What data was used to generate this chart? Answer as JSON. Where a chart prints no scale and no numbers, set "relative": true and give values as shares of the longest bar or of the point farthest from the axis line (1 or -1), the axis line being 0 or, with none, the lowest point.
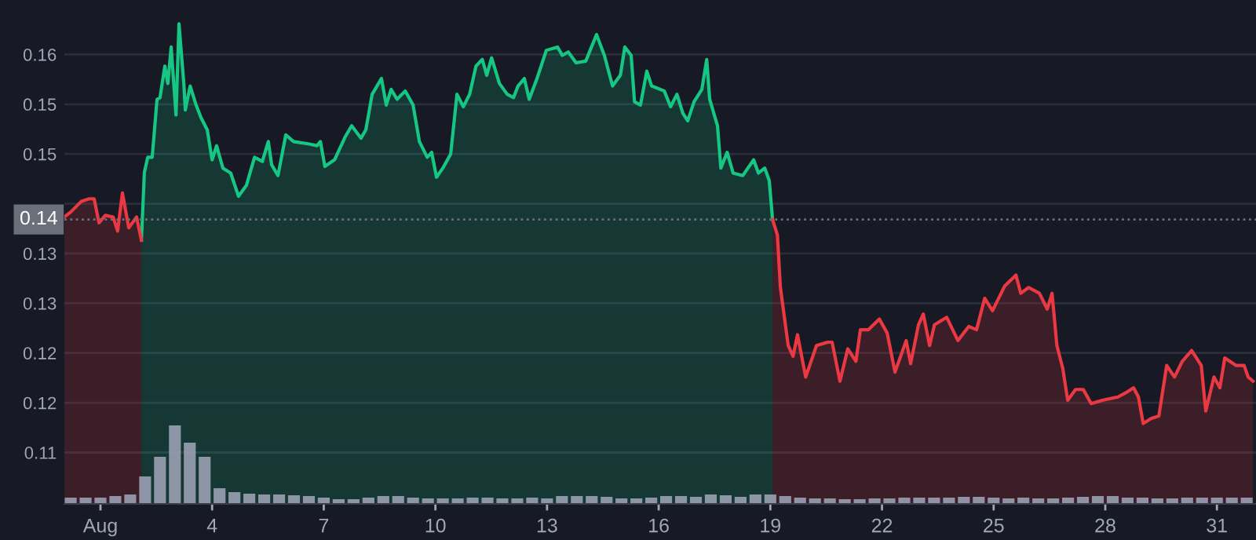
{
  "chart_data": [
    {
      "type": "area",
      "xlim": [
        0.03,
        32.05
      ],
      "ylim": [
        0.1038,
        0.16457
      ],
      "yticks": [
        {
          "value": 0.158,
          "label": "0.16"
        },
        {
          "value": 0.152,
          "label": "0.15"
        },
        {
          "value": 0.146,
          "label": "0.15"
        },
        {
          "value": 0.14,
          "label": null
        },
        {
          "value": 0.134,
          "label": "0.13"
        },
        {
          "value": 0.128,
          "label": "0.13"
        },
        {
          "value": 0.122,
          "label": "0.12"
        },
        {
          "value": 0.116,
          "label": "0.12"
        },
        {
          "value": 0.11,
          "label": "0.11"
        }
      ],
      "grid": "y",
      "tick_labels": "y",
      "ref_lines": [
        {
          "axis": "y",
          "value": 0.1381,
          "label": "0.14",
          "line_style": "dotted",
          "color": "#6b6f7a"
        }
      ],
      "series": [
        {
          "color": "#16c784",
          "x": [
            2.1,
            2.18,
            2.27,
            2.39,
            2.52,
            2.6,
            2.73,
            2.81,
            2.9,
            3.03,
            3.11,
            3.24,
            3.28,
            3.41,
            3.57,
            3.7,
            3.87,
            4.0,
            4.12,
            4.29,
            4.5,
            4.71,
            4.92,
            5.14,
            5.35,
            5.51,
            5.6,
            5.77,
            5.98,
            6.19,
            6.61,
            6.82,
            6.91,
            7.03,
            7.29,
            7.58,
            7.75,
            8.0,
            8.13,
            8.3,
            8.55,
            8.68,
            8.81,
            8.97,
            9.19,
            9.4,
            9.57,
            9.78,
            9.9,
            10.03,
            10.2,
            10.41,
            10.58,
            10.75,
            10.92,
            11.09,
            11.26,
            11.38,
            11.51,
            11.72,
            11.93,
            12.1,
            12.22,
            12.39,
            12.52,
            12.73,
            12.98,
            13.28,
            13.41,
            13.57,
            13.78,
            14.04,
            14.33,
            14.54,
            14.76,
            14.97,
            15.09,
            15.26,
            15.35,
            15.51,
            15.68,
            15.81,
            16.15,
            16.32,
            16.49,
            16.65,
            16.78,
            16.95,
            17.16,
            17.29,
            17.37,
            17.58,
            17.67,
            17.84,
            18.0,
            18.26,
            18.55,
            18.68,
            18.85,
            18.97,
            19.06
          ],
          "values": [
            0.1356,
            0.1438,
            0.1456,
            0.1456,
            0.1526,
            0.1528,
            0.1566,
            0.1545,
            0.1589,
            0.1507,
            0.1617,
            0.1545,
            0.1513,
            0.1542,
            0.1519,
            0.1504,
            0.1489,
            0.1453,
            0.147,
            0.1443,
            0.1437,
            0.1409,
            0.1422,
            0.1456,
            0.1451,
            0.1475,
            0.1447,
            0.1434,
            0.1483,
            0.1475,
            0.1472,
            0.147,
            0.1475,
            0.1445,
            0.1453,
            0.1481,
            0.1494,
            0.1479,
            0.1489,
            0.1532,
            0.1551,
            0.1519,
            0.1538,
            0.1526,
            0.1536,
            0.1519,
            0.1475,
            0.1456,
            0.1462,
            0.1432,
            0.1443,
            0.146,
            0.1532,
            0.1517,
            0.1532,
            0.1566,
            0.1574,
            0.1555,
            0.1576,
            0.1545,
            0.1532,
            0.1528,
            0.1542,
            0.1551,
            0.1526,
            0.1551,
            0.1585,
            0.1589,
            0.1579,
            0.1583,
            0.157,
            0.1572,
            0.1604,
            0.1579,
            0.1542,
            0.1555,
            0.1589,
            0.1579,
            0.1523,
            0.1519,
            0.156,
            0.1542,
            0.1536,
            0.1517,
            0.1532,
            0.1509,
            0.15,
            0.1523,
            0.1538,
            0.1574,
            0.1526,
            0.1494,
            0.1443,
            0.1462,
            0.1437,
            0.1434,
            0.1453,
            0.1437,
            0.1443,
            0.1428,
            0.1381
          ]
        },
        {
          "color": "#ea3943",
          "x": [
            0.03,
            0.2,
            0.49,
            0.7,
            0.83,
            0.96,
            1.13,
            1.34,
            1.46,
            1.59,
            1.76,
            1.97,
            2.1,
            10.5,
            19.06,
            19.19,
            19.27,
            19.48,
            19.61,
            19.73,
            19.95,
            20.24,
            20.54,
            20.66,
            20.87,
            21.08,
            21.3,
            21.42,
            21.63,
            21.93,
            22.14,
            22.35,
            22.65,
            22.77,
            22.98,
            23.11,
            23.28,
            23.41,
            23.74,
            24.04,
            24.33,
            24.54,
            24.76,
            24.97,
            25.3,
            25.6,
            25.73,
            25.94,
            26.23,
            26.44,
            26.57,
            26.7,
            26.86,
            26.99,
            27.2,
            27.41,
            27.62,
            27.92,
            28.34,
            28.55,
            28.76,
            28.89,
            29.02,
            29.23,
            29.44,
            29.65,
            29.86,
            30.07,
            30.32,
            30.58,
            30.7,
            30.92,
            31.08,
            31.21,
            31.51,
            31.73,
            31.84,
            31.97
          ],
          "values": [
            0.1384,
            0.139,
            0.1403,
            0.1406,
            0.1406,
            0.1377,
            0.1386,
            0.1384,
            0.1367,
            0.1413,
            0.1371,
            0.1384,
            0.1356,
            null,
            0.1381,
            0.1362,
            0.1299,
            0.1229,
            0.1216,
            0.1242,
            0.1191,
            0.1229,
            0.1233,
            0.1233,
            0.1186,
            0.1225,
            0.121,
            0.1248,
            0.1248,
            0.1261,
            0.1244,
            0.1197,
            0.1235,
            0.1207,
            0.1254,
            0.1267,
            0.1229,
            0.1254,
            0.1263,
            0.1235,
            0.1252,
            0.1248,
            0.1286,
            0.1271,
            0.1301,
            0.1314,
            0.1292,
            0.1299,
            0.1292,
            0.1273,
            0.1292,
            0.1229,
            0.1201,
            0.1163,
            0.1176,
            0.1176,
            0.1159,
            0.1163,
            0.1167,
            0.1172,
            0.1178,
            0.1167,
            0.1135,
            0.1141,
            0.1144,
            0.1205,
            0.1191,
            0.121,
            0.1223,
            0.1205,
            0.115,
            0.1191,
            0.1178,
            0.1214,
            0.1205,
            0.1205,
            0.1191,
            0.1186
          ]
        }
      ]
    },
    {
      "type": "bar",
      "relative": true,
      "xlim": [
        0.03,
        32.05
      ],
      "tick_labels": "x",
      "xticks": [
        {
          "value": 1,
          "label": "Aug"
        },
        4,
        7,
        10,
        13,
        16,
        19,
        22,
        25,
        28,
        31
      ],
      "series": [
        {
          "color": "#a1a7bb",
          "x": [
            0.2,
            0.6,
            1.0,
            1.4,
            1.8,
            2.2,
            2.6,
            3.0,
            3.4,
            3.8,
            4.2,
            4.6,
            5.0,
            5.4,
            5.8,
            6.2,
            6.6,
            7.0,
            7.4,
            7.8,
            8.2,
            8.6,
            9.0,
            9.4,
            9.8,
            10.2,
            10.6,
            11.0,
            11.4,
            11.8,
            12.2,
            12.6,
            13.0,
            13.4,
            13.8,
            14.2,
            14.6,
            15.0,
            15.4,
            15.8,
            16.2,
            16.6,
            17.0,
            17.4,
            17.8,
            18.2,
            18.6,
            19.0,
            19.4,
            19.8,
            20.2,
            20.6,
            21.0,
            21.4,
            21.8,
            22.2,
            22.6,
            23.0,
            23.4,
            23.8,
            24.2,
            24.6,
            25.0,
            25.4,
            25.8,
            26.2,
            26.6,
            27.0,
            27.4,
            27.8,
            28.2,
            28.6,
            29.0,
            29.4,
            29.8,
            30.2,
            30.6,
            31.0,
            31.4,
            31.8
          ],
          "values": [
            0.08,
            0.08,
            0.08,
            0.1,
            0.12,
            0.35,
            0.6,
            1,
            0.78,
            0.6,
            0.2,
            0.15,
            0.13,
            0.12,
            0.12,
            0.11,
            0.1,
            0.08,
            0.06,
            0.06,
            0.08,
            0.1,
            0.1,
            0.08,
            0.07,
            0.07,
            0.07,
            0.08,
            0.08,
            0.07,
            0.07,
            0.08,
            0.07,
            0.1,
            0.1,
            0.1,
            0.09,
            0.07,
            0.07,
            0.08,
            0.1,
            0.1,
            0.09,
            0.12,
            0.11,
            0.09,
            0.12,
            0.12,
            0.1,
            0.08,
            0.07,
            0.07,
            0.06,
            0.06,
            0.07,
            0.07,
            0.08,
            0.08,
            0.08,
            0.08,
            0.09,
            0.09,
            0.08,
            0.07,
            0.08,
            0.07,
            0.07,
            0.08,
            0.09,
            0.1,
            0.1,
            0.08,
            0.08,
            0.07,
            0.07,
            0.08,
            0.08,
            0.08,
            0.08,
            0.08
          ]
        }
      ]
    }
  ]
}
